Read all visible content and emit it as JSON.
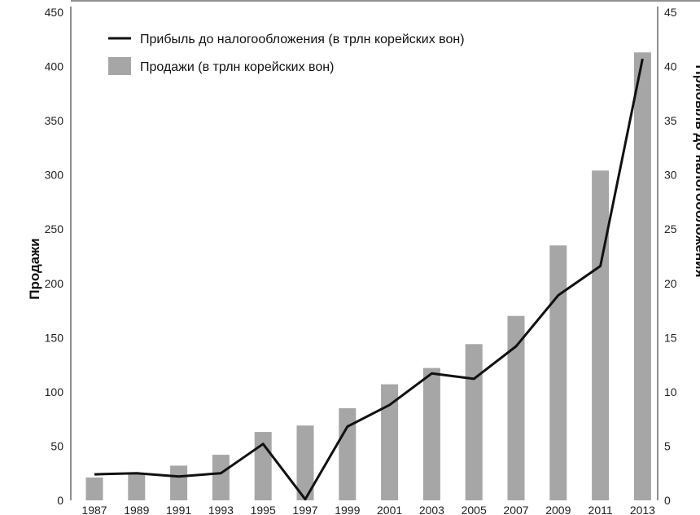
{
  "chart_data": {
    "type": "bar+line",
    "categories": [
      "1987",
      "1989",
      "1991",
      "1993",
      "1995",
      "1997",
      "1999",
      "2001",
      "2003",
      "2005",
      "2007",
      "2009",
      "2011",
      "2013"
    ],
    "series": [
      {
        "name": "Продажи (в трлн корейских вон)",
        "type": "bar",
        "axis": "left",
        "color": "#a6a6a6",
        "values": [
          21,
          25,
          32,
          42,
          63,
          69,
          85,
          107,
          122,
          144,
          170,
          235,
          304,
          413
        ]
      },
      {
        "name": "Прибыль до налогообложения (в трлн корейских вон)",
        "type": "line",
        "axis": "right",
        "color": "#111111",
        "values": [
          2.4,
          2.5,
          2.2,
          2.5,
          5.2,
          0.1,
          6.8,
          8.8,
          11.7,
          11.2,
          14.2,
          18.9,
          21.6,
          40.7
        ]
      }
    ],
    "ylabel_left": "Продажи",
    "ylabel_right": "Прибыль до налогообложения",
    "ylim_left": [
      0,
      450
    ],
    "ylim_right": [
      0,
      45
    ],
    "yticks_left": [
      0,
      50,
      100,
      150,
      200,
      250,
      300,
      350,
      400,
      450
    ],
    "yticks_right": [
      0,
      5,
      10,
      15,
      20,
      25,
      30,
      35,
      40,
      45
    ],
    "legend_position": "top-left",
    "grid": false
  }
}
